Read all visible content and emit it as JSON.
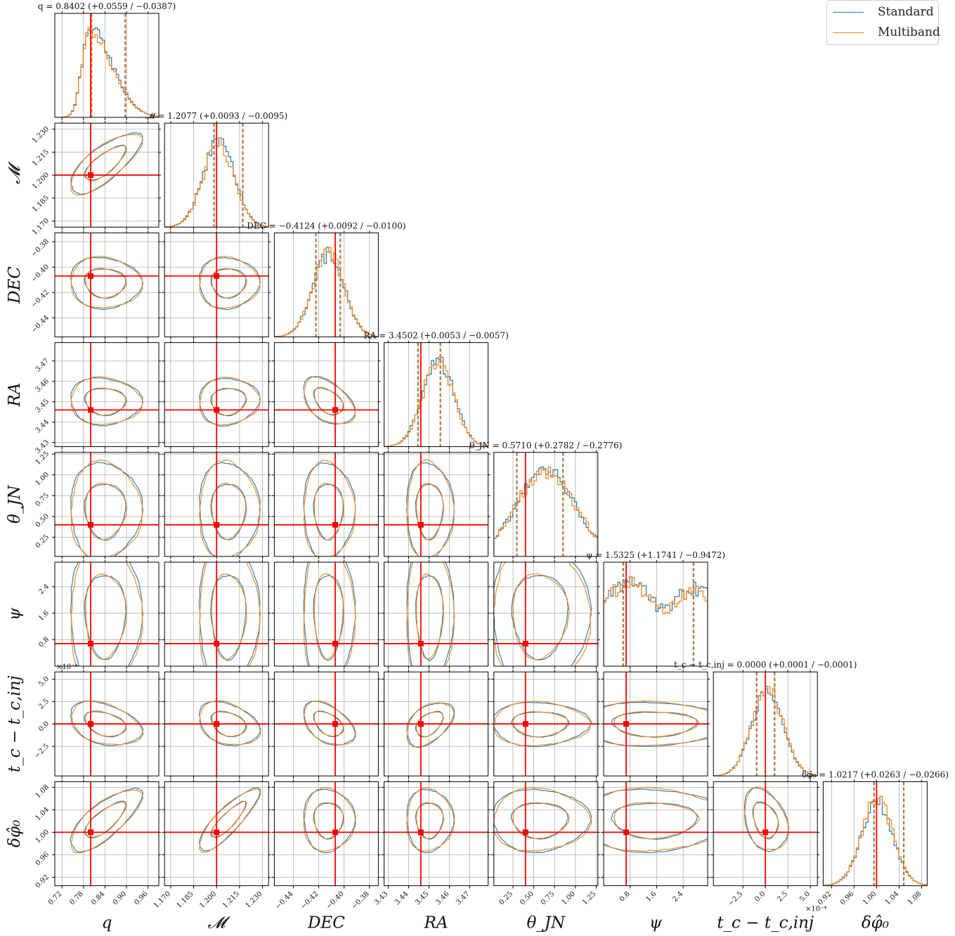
{
  "chart_data": {
    "type": "corner",
    "parameters": [
      {
        "key": "q",
        "label": "q",
        "range": [
          0.7,
          0.99
        ],
        "ticks": [
          0.72,
          0.78,
          0.84,
          0.9,
          0.96
        ],
        "tick_labels": [
          "0.72",
          "0.78",
          "0.84",
          "0.90",
          "0.96"
        ],
        "injection": 0.8,
        "median": 0.8402,
        "lower": 0.8015,
        "upper": 0.8961,
        "title": "q = 0.8402 (+0.0559 / −0.0387)"
      },
      {
        "key": "chirp_mass",
        "label": "𝓜",
        "range": [
          1.166,
          1.234
        ],
        "ticks": [
          1.17,
          1.185,
          1.2,
          1.215,
          1.23
        ],
        "tick_labels": [
          "1.170",
          "1.185",
          "1.200",
          "1.215",
          "1.230"
        ],
        "injection": 1.2,
        "median": 1.2077,
        "lower": 1.1982,
        "upper": 1.217,
        "title": "𝓜 = 1.2077 (+0.0093 / −0.0095)"
      },
      {
        "key": "dec",
        "label": "DEC",
        "range": [
          -0.455,
          -0.373
        ],
        "ticks": [
          -0.44,
          -0.42,
          -0.4,
          -0.38
        ],
        "tick_labels": [
          "−0.44",
          "−0.42",
          "−0.40",
          "−0.38"
        ],
        "injection": -0.407,
        "median": -0.4124,
        "lower": -0.4224,
        "upper": -0.4032,
        "title": "DEC = −0.4124 (+0.0092 / −0.0100)"
      },
      {
        "key": "ra",
        "label": "RA",
        "range": [
          3.428,
          3.479
        ],
        "ticks": [
          3.43,
          3.44,
          3.45,
          3.46,
          3.47
        ],
        "tick_labels": [
          "3.43",
          "3.44",
          "3.45",
          "3.46",
          "3.47"
        ],
        "injection": 3.446,
        "median": 3.4502,
        "lower": 3.4445,
        "upper": 3.4555,
        "title": "RA = 3.4502 (+0.0053 / −0.0057)"
      },
      {
        "key": "theta_jn",
        "label": "θ_JN",
        "range": [
          0.02,
          1.27
        ],
        "ticks": [
          0.25,
          0.5,
          0.75,
          1.0,
          1.25
        ],
        "tick_labels": [
          "0.25",
          "0.50",
          "0.75",
          "1.00",
          "1.25"
        ],
        "injection": 0.4,
        "median": 0.571,
        "lower": 0.2934,
        "upper": 0.8492,
        "title": "θ_JN = 0.5710 (+0.2782 / −0.2776)"
      },
      {
        "key": "psi",
        "label": "ψ",
        "range": [
          0.0,
          3.14
        ],
        "ticks": [
          0.8,
          1.6,
          2.4
        ],
        "tick_labels": [
          "0.8",
          "1.6",
          "2.4"
        ],
        "injection": 0.68,
        "median": 1.5325,
        "lower": 0.5853,
        "upper": 2.7066,
        "title": "ψ = 1.5325 (+1.1741 / −0.9472)"
      },
      {
        "key": "tc",
        "label": "t_c − t_c,inj",
        "range": [
          -0.00058,
          0.00058
        ],
        "ticks": [
          -0.00025,
          0.0,
          0.00025,
          0.0005
        ],
        "tick_labels": [
          "−2.5",
          "0.0",
          "2.5",
          "5.0"
        ],
        "injection": 0.0,
        "median": 0.0,
        "lower": -0.0001,
        "upper": 0.0001,
        "title": "t_c − t_c,inj = 0.0000 (+0.0001 / −0.0001)",
        "offset_label": "×10⁻⁴"
      },
      {
        "key": "dphi",
        "label": "δφ̂₀",
        "range": [
          0.905,
          1.09
        ],
        "ticks": [
          0.92,
          0.96,
          1.0,
          1.04,
          1.08
        ],
        "tick_labels": [
          "0.92",
          "0.96",
          "1.00",
          "1.04",
          "1.08"
        ],
        "injection": 1.0,
        "median": 1.0217,
        "lower": 0.9951,
        "upper": 1.048,
        "title": "δφ̂₀ = 1.0217 (+0.0263 / −0.0266)"
      }
    ],
    "series": [
      {
        "name": "Standard",
        "color": "#1f77b4"
      },
      {
        "name": "Multiband",
        "color": "#ff7f0e"
      }
    ],
    "correlations": [
      [
        0
      ],
      [
        0.75
      ],
      [
        -0.05,
        0.0
      ],
      [
        -0.05,
        0.05,
        -0.45
      ],
      [
        0.0,
        0.0,
        0.0,
        0.0
      ],
      [
        0.0,
        0.0,
        0.0,
        0.0,
        0.0
      ],
      [
        -0.35,
        -0.3,
        -0.45,
        0.45,
        0.0,
        0.0
      ],
      [
        0.75,
        0.85,
        0.0,
        0.0,
        0.0,
        0.0,
        -0.3
      ]
    ],
    "legend": {
      "position": "top-right",
      "entries": [
        "Standard",
        "Multiband"
      ]
    },
    "injection_color": "#ff0000",
    "quantile_line_style": "dashed",
    "grid": true
  }
}
